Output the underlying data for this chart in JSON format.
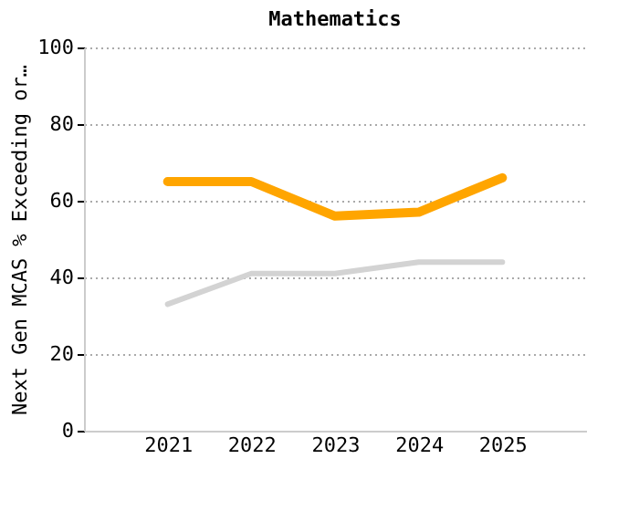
{
  "chart_data": {
    "type": "line",
    "title": "Mathematics",
    "ylabel": "Next Gen MCAS % Exceeding or…",
    "categories": [
      "2021",
      "2022",
      "2023",
      "2024",
      "2025"
    ],
    "series": [
      {
        "color": "#ffa500",
        "values": [
          65,
          65,
          56,
          57,
          66
        ]
      },
      {
        "color": "#d3d3d3",
        "values": [
          33,
          41,
          41,
          44,
          44
        ]
      }
    ],
    "ylim": [
      0,
      100
    ],
    "yticks": [
      0,
      20,
      40,
      60,
      80,
      100
    ],
    "grid": "y"
  }
}
